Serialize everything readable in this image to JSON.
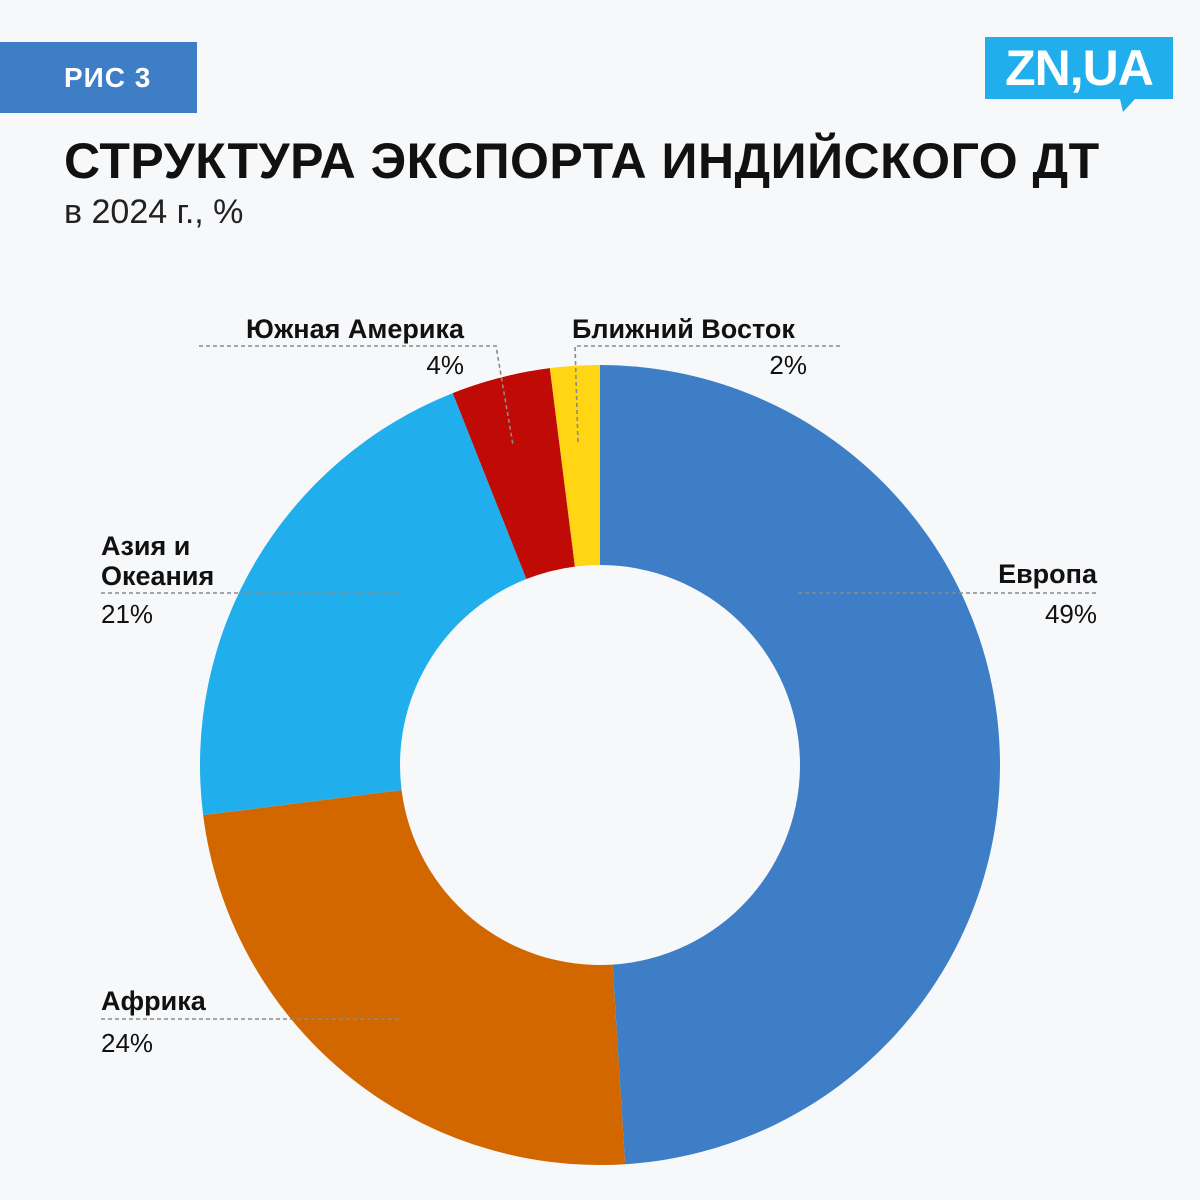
{
  "badge": {
    "label": "РИС 3"
  },
  "logo": {
    "text": "ZN,UA"
  },
  "header": {
    "title": "СТРУКТУРА ЭКСПОРТА ИНДИЙСКОГО ДТ",
    "subtitle": "в 2024 г., %"
  },
  "chart_data": {
    "type": "pie",
    "donut": true,
    "title": "СТРУКТУРА ЭКСПОРТА ИНДИЙСКОГО ДТ",
    "subtitle": "в 2024 г., %",
    "unit": "%",
    "slices": [
      {
        "label": "Европа",
        "value": 49,
        "display": "49%",
        "color": "#3e7ec7"
      },
      {
        "label": "Африка",
        "value": 24,
        "display": "24%",
        "color": "#d26700"
      },
      {
        "label": "Азия и Океания",
        "label_lines": [
          "Азия и",
          "Океания"
        ],
        "value": 21,
        "display": "21%",
        "color": "#20afec"
      },
      {
        "label": "Южная Америка",
        "value": 4,
        "display": "4%",
        "color": "#bf0a05"
      },
      {
        "label": "Ближний Восток",
        "value": 2,
        "display": "2%",
        "color": "#ffd514"
      }
    ]
  }
}
